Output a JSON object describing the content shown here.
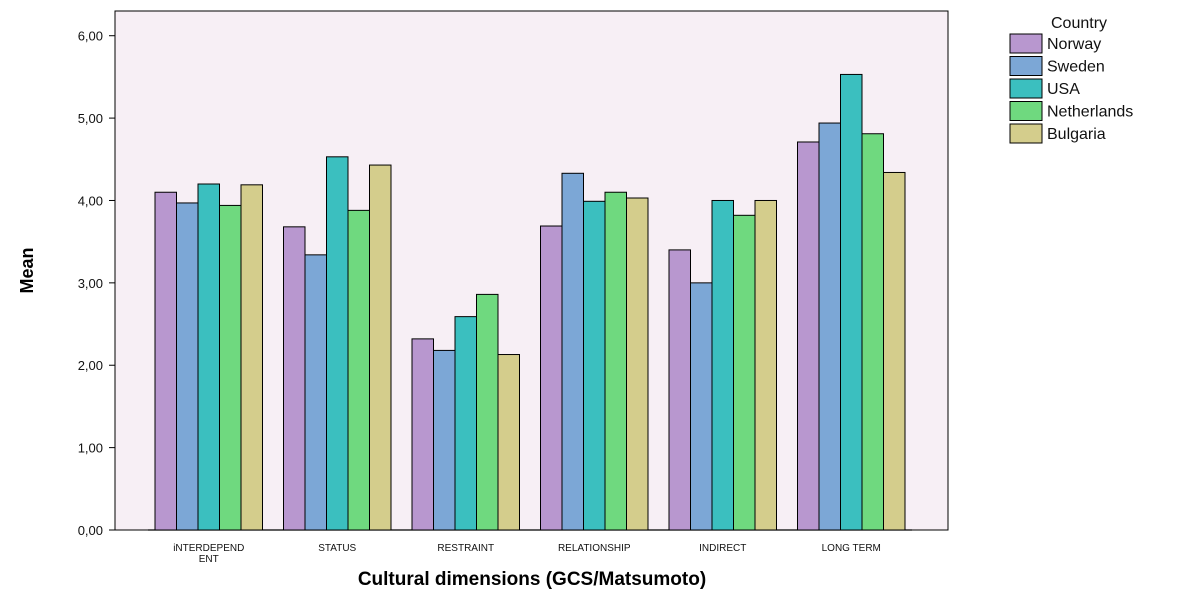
{
  "chart_data": {
    "type": "bar",
    "title": "",
    "xlabel": "Cultural dimensions (GCS/Matsumoto)",
    "ylabel": "Mean",
    "ylim": [
      0,
      6.3
    ],
    "yticks": [
      "0,00",
      "1,00",
      "2,00",
      "3,00",
      "4,00",
      "5,00",
      "6,00"
    ],
    "categories": [
      [
        "iNTERDEPEND",
        "ENT"
      ],
      [
        "STATUS"
      ],
      [
        "RESTRAINT"
      ],
      [
        "RELATIONSHIP"
      ],
      [
        "INDIRECT"
      ],
      [
        "LONG TERM"
      ]
    ],
    "legend": {
      "title": "Country",
      "position": "right"
    },
    "grid": false,
    "background": "#f7eff5",
    "series": [
      {
        "name": "Norway",
        "color": "#b897cf",
        "values": [
          4.1,
          3.68,
          2.32,
          3.69,
          3.4,
          4.71
        ]
      },
      {
        "name": "Sweden",
        "color": "#7ca7d6",
        "values": [
          3.97,
          3.34,
          2.18,
          4.33,
          3.0,
          4.94
        ]
      },
      {
        "name": "USA",
        "color": "#3bbfbf",
        "values": [
          4.2,
          4.53,
          2.59,
          3.99,
          4.0,
          5.53
        ]
      },
      {
        "name": "Netherlands",
        "color": "#6fd97f",
        "values": [
          3.94,
          3.88,
          2.86,
          4.1,
          3.82,
          4.81
        ]
      },
      {
        "name": "Bulgaria",
        "color": "#d4cd8c",
        "values": [
          4.19,
          4.43,
          2.13,
          4.03,
          4.0,
          4.34
        ]
      }
    ]
  }
}
